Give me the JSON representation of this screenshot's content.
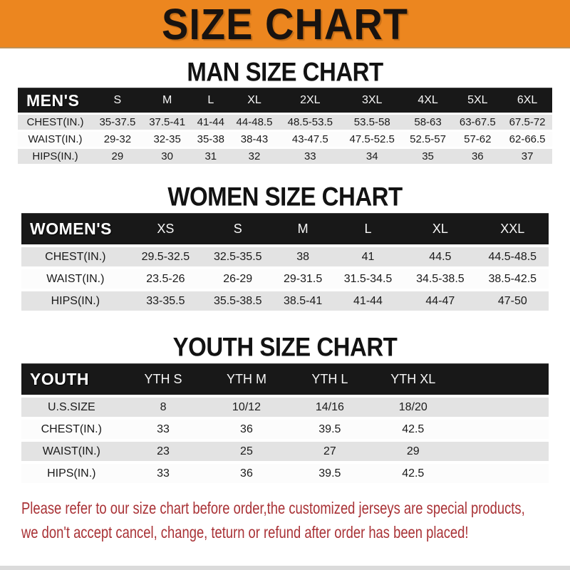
{
  "banner": {
    "title": "SIZE CHART"
  },
  "chart_data": [
    {
      "type": "table",
      "title": "MAN SIZE CHART",
      "corner_label": "MEN'S",
      "columns": [
        "S",
        "M",
        "L",
        "XL",
        "2XL",
        "3XL",
        "4XL",
        "5XL",
        "6XL"
      ],
      "rows": [
        {
          "label": "CHEST(IN.)",
          "values": [
            "35-37.5",
            "37.5-41",
            "41-44",
            "44-48.5",
            "48.5-53.5",
            "53.5-58",
            "58-63",
            "63-67.5",
            "67.5-72"
          ]
        },
        {
          "label": "WAIST(IN.)",
          "values": [
            "29-32",
            "32-35",
            "35-38",
            "38-43",
            "43-47.5",
            "47.5-52.5",
            "52.5-57",
            "57-62",
            "62-66.5"
          ]
        },
        {
          "label": "HIPS(IN.)",
          "values": [
            "29",
            "30",
            "31",
            "32",
            "33",
            "34",
            "35",
            "36",
            "37"
          ]
        }
      ]
    },
    {
      "type": "table",
      "title": "WOMEN SIZE CHART",
      "corner_label": "WOMEN'S",
      "columns": [
        "XS",
        "S",
        "M",
        "L",
        "XL",
        "XXL"
      ],
      "rows": [
        {
          "label": "CHEST(IN.)",
          "values": [
            "29.5-32.5",
            "32.5-35.5",
            "38",
            "41",
            "44.5",
            "44.5-48.5"
          ]
        },
        {
          "label": "WAIST(IN.)",
          "values": [
            "23.5-26",
            "26-29",
            "29-31.5",
            "31.5-34.5",
            "34.5-38.5",
            "38.5-42.5"
          ]
        },
        {
          "label": "HIPS(IN.)",
          "values": [
            "33-35.5",
            "35.5-38.5",
            "38.5-41",
            "41-44",
            "44-47",
            "47-50"
          ]
        }
      ]
    },
    {
      "type": "table",
      "title": "YOUTH SIZE CHART",
      "corner_label": "YOUTH",
      "columns": [
        "YTH S",
        "YTH M",
        "YTH L",
        "YTH XL"
      ],
      "trailing_spacer": true,
      "rows": [
        {
          "label": "U.S.SIZE",
          "values": [
            "8",
            "10/12",
            "14/16",
            "18/20"
          ]
        },
        {
          "label": "CHEST(IN.)",
          "values": [
            "33",
            "36",
            "39.5",
            "42.5"
          ]
        },
        {
          "label": "WAIST(IN.)",
          "values": [
            "23",
            "25",
            "27",
            "29"
          ]
        },
        {
          "label": "HIPS(IN.)",
          "values": [
            "33",
            "36",
            "39.5",
            "42.5"
          ]
        }
      ]
    }
  ],
  "disclaimer": {
    "line1": "Please refer to our size chart before order,the customized jerseys are special products,",
    "line2": "we don't accept cancel, change, teturn or refund after order has been placed!"
  },
  "colors": {
    "banner-orange": "#EC861F",
    "header-black": "#181818",
    "row-gray": "#E3E3E3",
    "disclaimer-red": "#A93236"
  }
}
